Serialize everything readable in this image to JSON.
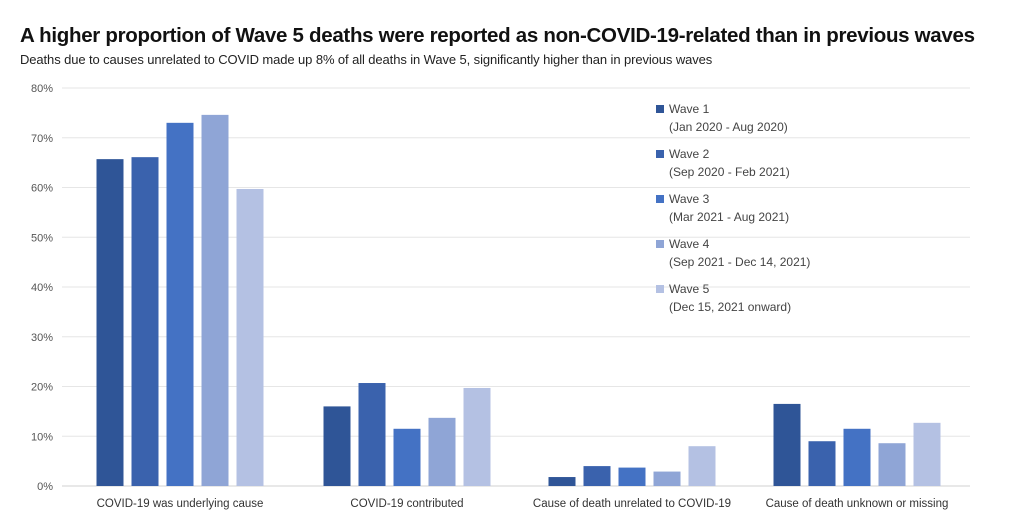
{
  "chart_data": {
    "type": "bar",
    "title": "A higher proportion of Wave 5 deaths were reported as non-COVID-19-related than in previous waves",
    "subtitle": "Deaths due to causes unrelated to COVID made up 8% of all deaths in Wave 5, significantly higher than in previous waves",
    "xlabel": "",
    "ylabel": "",
    "ylim": [
      0,
      80
    ],
    "yticks": [
      0,
      10,
      20,
      30,
      40,
      50,
      60,
      70,
      80
    ],
    "ytick_labels": [
      "0%",
      "10%",
      "20%",
      "30%",
      "40%",
      "50%",
      "60%",
      "70%",
      "80%"
    ],
    "grid": true,
    "legend_position": "top-right",
    "categories": [
      "COVID-19 was underlying cause",
      "COVID-19 contributed",
      "Cause of death unrelated to COVID-19",
      "Cause of death unknown or missing"
    ],
    "series": [
      {
        "name": "Wave 1",
        "period": "(Jan 2020 - Aug 2020)",
        "color": "#2f5597",
        "values": [
          65.7,
          16.0,
          1.8,
          16.5
        ]
      },
      {
        "name": "Wave 2",
        "period": "(Sep 2020 - Feb 2021)",
        "color": "#3a62ad",
        "values": [
          66.1,
          20.7,
          4.0,
          9.0
        ]
      },
      {
        "name": "Wave 3",
        "period": "(Mar 2021 - Aug 2021)",
        "color": "#4472c4",
        "values": [
          73.0,
          11.5,
          3.7,
          11.5
        ]
      },
      {
        "name": "Wave 4",
        "period": "(Sep 2021 - Dec 14, 2021)",
        "color": "#8fa5d6",
        "values": [
          74.6,
          13.7,
          2.9,
          8.6
        ]
      },
      {
        "name": "Wave 5",
        "period": "(Dec 15, 2021 onward)",
        "color": "#b4c1e3",
        "values": [
          59.7,
          19.7,
          8.0,
          12.7
        ]
      }
    ]
  }
}
